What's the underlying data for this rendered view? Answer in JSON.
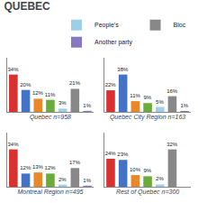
{
  "title": "QUEBEC",
  "chart_data": [
    {
      "type": "bar",
      "title": "Quebec n=958",
      "categories": [
        null,
        null,
        null,
        null,
        null,
        null,
        null
      ],
      "values": [
        34,
        20,
        12,
        11,
        3,
        21,
        1
      ],
      "value_labels": [
        "34%",
        "20%",
        "12%",
        "11%",
        "3%",
        "21%",
        "1%"
      ],
      "colors": [
        "#d93030",
        "#4472c4",
        "#e8882a",
        "#6aac3a",
        "#9ecfe8",
        "#888888",
        "#8878c0"
      ],
      "data_labels": true,
      "tick_labels": false,
      "grid": false,
      "ylim": [
        0,
        49.3
      ]
    },
    {
      "type": "bar",
      "title": "Quebec City Region n=163",
      "categories": [
        null,
        null,
        null,
        null,
        null,
        null,
        null
      ],
      "values": [
        22,
        38,
        11,
        9,
        5,
        16,
        1
      ],
      "value_labels": [
        "22%",
        "38%",
        "11%",
        "9%",
        "5%",
        "16%",
        "1%"
      ],
      "colors": [
        "#d93030",
        "#4472c4",
        "#e8882a",
        "#6aac3a",
        "#9ecfe8",
        "#888888",
        "#8878c0"
      ],
      "data_labels": true,
      "tick_labels": false,
      "grid": false,
      "ylim": [
        0,
        55.1
      ],
      "legend": "upper right",
      "legend_entries": [
        {
          "name": "People's",
          "color": "#9ecfe8"
        },
        {
          "name": "Bloc",
          "color": "#888888"
        },
        {
          "name": "Another party",
          "color": "#8878c0"
        }
      ]
    },
    {
      "type": "bar",
      "title": "Montreal Region n=495",
      "categories": [
        null,
        null,
        null,
        null,
        null,
        null,
        null
      ],
      "values": [
        34,
        12,
        13,
        12,
        2,
        17,
        1
      ],
      "value_labels": [
        "34%",
        "12%",
        "13%",
        "12%",
        "2%",
        "17%",
        "1%"
      ],
      "colors": [
        "#d93030",
        "#4472c4",
        "#e8882a",
        "#6aac3a",
        "#9ecfe8",
        "#888888",
        "#8878c0"
      ],
      "data_labels": true,
      "tick_labels": false,
      "grid": false,
      "ylim": [
        0,
        49.3
      ]
    },
    {
      "type": "bar",
      "title": "Rest of Quebec n=300",
      "categories": [
        null,
        null,
        null,
        null,
        null,
        null,
        null
      ],
      "values": [
        24,
        23,
        10,
        9,
        2,
        32,
        0
      ],
      "value_labels": [
        "24%",
        "23%",
        "10%",
        "9%",
        "2%",
        "32%",
        null
      ],
      "colors": [
        "#d93030",
        "#4472c4",
        "#e8882a",
        "#6aac3a",
        "#9ecfe8",
        "#888888",
        "#8878c0"
      ],
      "data_labels": true,
      "tick_labels": false,
      "grid": false,
      "ylim": [
        0,
        46.4
      ]
    }
  ]
}
